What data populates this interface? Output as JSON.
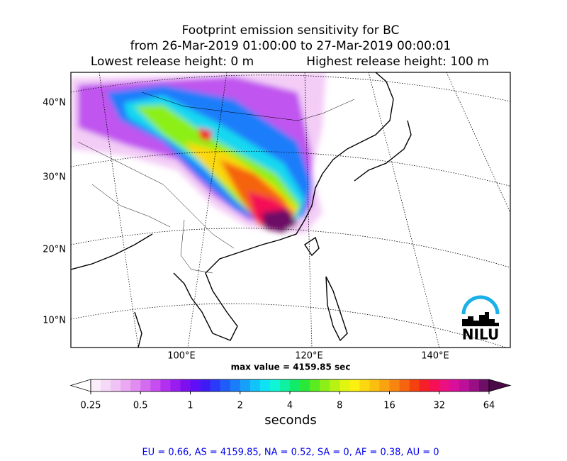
{
  "title": {
    "line1": "Footprint emission sensitivity for BC",
    "line2": "from 26-Mar-2019 01:00:00 to 27-Mar-2019 00:00:01",
    "lowest": "Lowest release height: 0 m",
    "highest": "Highest release height: 100 m"
  },
  "map": {
    "lat_labels": [
      "40°N",
      "30°N",
      "20°N",
      "10°N"
    ],
    "lon_labels": [
      "100°E",
      "120°E",
      "140°E"
    ],
    "max_value": "max value = 4159.85 sec",
    "logo": "NILU"
  },
  "colorbar": {
    "ticks": [
      0.25,
      0.5,
      1,
      2,
      4,
      8,
      16,
      32,
      64
    ],
    "label": "seconds",
    "colors": [
      "#fbeefb",
      "#f6d8f8",
      "#f0c2f5",
      "#eaa9f2",
      "#e08cf0",
      "#d46cf0",
      "#c64ef0",
      "#b231f0",
      "#9a1df0",
      "#7e10f0",
      "#5f0ef5",
      "#3f1af5",
      "#2a3af8",
      "#1f5cf8",
      "#1a7dfa",
      "#16a0fa",
      "#12c3fa",
      "#0fe2f5",
      "#0ff5d8",
      "#0ff0a0",
      "#10ec6a",
      "#2ae83a",
      "#5aeb20",
      "#8cef18",
      "#b8f214",
      "#e0f510",
      "#fbf010",
      "#fbd810",
      "#fbbf10",
      "#faa310",
      "#f8850f",
      "#f5640f",
      "#f5400f",
      "#f51f2a",
      "#f50f55",
      "#ec0f80",
      "#d80f9a",
      "#bd0f9a",
      "#990f85",
      "#6d0f66"
    ]
  },
  "footer": "EU = 0.66,  AS = 4159.85,  NA = 0.52,  SA = 0,  AF = 0.38,  AU = 0"
}
